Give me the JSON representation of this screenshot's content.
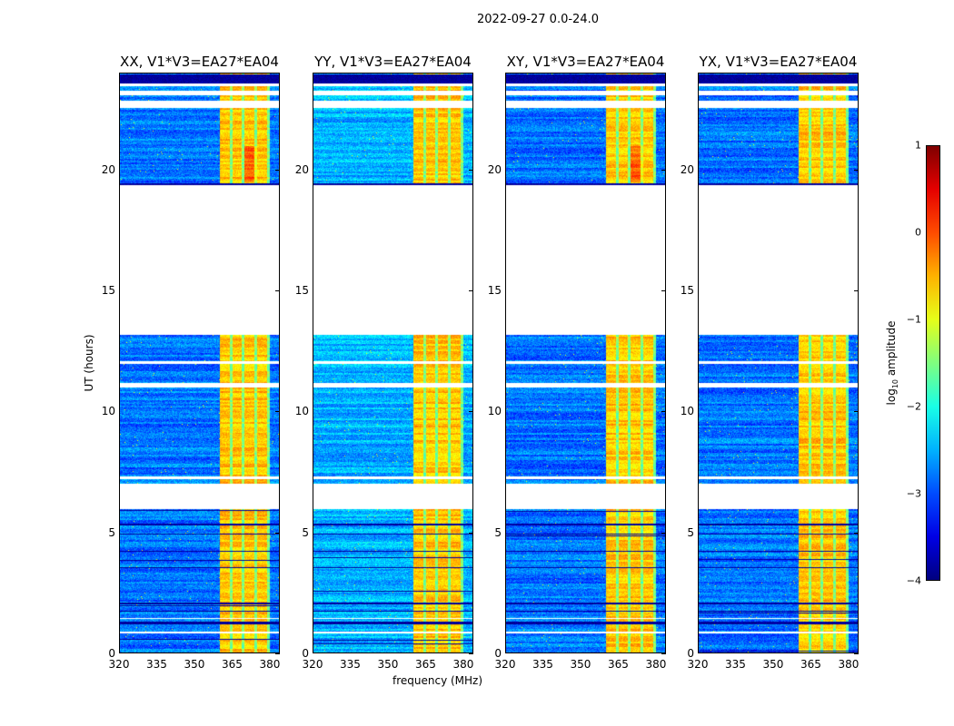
{
  "chart_data": {
    "type": "heatmap",
    "suptitle": "2022-09-27 0.0-24.0",
    "xlabel": "frequency (MHz)",
    "ylabel": "UT (hours)",
    "xlim": [
      320,
      384
    ],
    "ylim": [
      0,
      24
    ],
    "xticks": [
      "320",
      "335",
      "350",
      "365",
      "380"
    ],
    "xtick_values": [
      320,
      335,
      350,
      365,
      380
    ],
    "yticks": [
      "0",
      "5",
      "10",
      "15",
      "20"
    ],
    "ytick_values": [
      0,
      5,
      10,
      15,
      20
    ],
    "panels": [
      {
        "title": "XX, V1*V3=EA27*EA04"
      },
      {
        "title": "YY, V1*V3=EA27*EA04"
      },
      {
        "title": "XY, V1*V3=EA27*EA04"
      },
      {
        "title": "YX, V1*V3=EA27*EA04"
      }
    ],
    "colorbar": {
      "label": "log10 amplitude",
      "label_main": "log",
      "label_sub": "10",
      "label_rest": " amplitude",
      "range": [
        -4,
        1
      ],
      "ticks": [
        "1",
        "0",
        "−1",
        "−2",
        "−3",
        "−4"
      ],
      "tick_values": [
        1,
        0,
        -1,
        -2,
        -3,
        -4
      ],
      "colormap": "jet"
    },
    "baseline_log_amplitude": -2.8,
    "bright_band_mhz": [
      360,
      380
    ],
    "bright_band_log_amplitude": -0.6,
    "flagged_hours": [
      [
        13.2,
        19.4
      ],
      [
        5.95,
        7.0
      ],
      [
        22.6,
        22.9
      ],
      [
        23.1,
        23.3
      ],
      [
        11.0,
        11.2
      ],
      [
        12.0,
        12.1
      ],
      [
        7.2,
        7.3
      ],
      [
        0.8,
        0.9
      ],
      [
        1.4,
        1.45
      ],
      [
        23.5,
        23.6
      ]
    ],
    "dropout_hours": [
      [
        23.6,
        24.0
      ],
      [
        19.35,
        19.45
      ],
      [
        2.0,
        2.1
      ],
      [
        1.7,
        1.75
      ],
      [
        1.2,
        1.3
      ],
      [
        3.5,
        3.55
      ],
      [
        4.2,
        4.25
      ],
      [
        4.9,
        4.95
      ],
      [
        5.3,
        5.35
      ]
    ]
  }
}
